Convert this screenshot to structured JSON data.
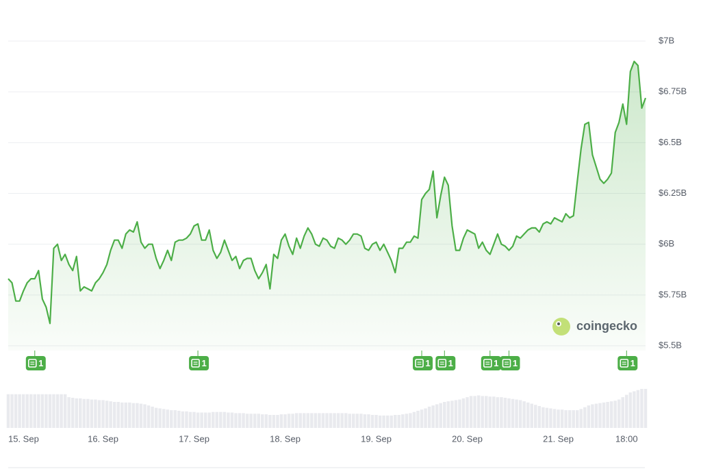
{
  "chart_data": {
    "type": "line",
    "x": [
      -1,
      0,
      1,
      2,
      3,
      4,
      5,
      6,
      7,
      8,
      9,
      10,
      11,
      12,
      13,
      14,
      15,
      16,
      17,
      18,
      19,
      20,
      21,
      22,
      23,
      24,
      25,
      26,
      27,
      28,
      29,
      30,
      31,
      32,
      33,
      34,
      35,
      36,
      37,
      38,
      39,
      40,
      41,
      42,
      43,
      44,
      45,
      46,
      47,
      48,
      49,
      50,
      51,
      52,
      53,
      54,
      55,
      56,
      57,
      58,
      59,
      60,
      61,
      62,
      63,
      64,
      65,
      66,
      67,
      68,
      69,
      70,
      71,
      72,
      73,
      74,
      75,
      76,
      77,
      78,
      79,
      80,
      81,
      82,
      83,
      84,
      85,
      86,
      87,
      88,
      89,
      90,
      91,
      92,
      93,
      94,
      95,
      96,
      97,
      98,
      99,
      100,
      101,
      102,
      103,
      104,
      105,
      106,
      107,
      108,
      109,
      110,
      111,
      112,
      113,
      114,
      115,
      116,
      117,
      118,
      119,
      120,
      121,
      122,
      123,
      124,
      125,
      126,
      127,
      128,
      129,
      130,
      131,
      132,
      133,
      134,
      135,
      136,
      137,
      138,
      139,
      140,
      141,
      142,
      143,
      144,
      145,
      146,
      147,
      148,
      149,
      150,
      151,
      152,
      153,
      154,
      155,
      156,
      157,
      158,
      159,
      160,
      161,
      162,
      163,
      164,
      165,
      166,
      167
    ],
    "series": [
      {
        "color": "#4cae47",
        "values": [
          5.83,
          5.81,
          5.72,
          5.72,
          5.77,
          5.81,
          5.83,
          5.83,
          5.87,
          5.73,
          5.69,
          5.61,
          5.98,
          6.0,
          5.92,
          5.95,
          5.9,
          5.87,
          5.94,
          5.77,
          5.79,
          5.78,
          5.77,
          5.81,
          5.83,
          5.86,
          5.9,
          5.97,
          6.02,
          6.02,
          5.98,
          6.05,
          6.07,
          6.06,
          6.11,
          6.01,
          5.98,
          6.0,
          6.0,
          5.93,
          5.88,
          5.92,
          5.97,
          5.92,
          6.01,
          6.02,
          6.02,
          6.03,
          6.05,
          6.09,
          6.1,
          6.02,
          6.02,
          6.07,
          5.97,
          5.93,
          5.96,
          6.02,
          5.97,
          5.92,
          5.94,
          5.88,
          5.92,
          5.93,
          5.93,
          5.87,
          5.83,
          5.86,
          5.9,
          5.78,
          5.95,
          5.93,
          6.02,
          6.05,
          5.99,
          5.95,
          6.03,
          5.98,
          6.04,
          6.08,
          6.05,
          6.0,
          5.99,
          6.03,
          6.02,
          5.99,
          5.98,
          6.03,
          6.02,
          6.0,
          6.02,
          6.05,
          6.05,
          6.04,
          5.98,
          5.97,
          6.0,
          6.01,
          5.97,
          6.0,
          5.96,
          5.92,
          5.86,
          5.98,
          5.98,
          6.01,
          6.01,
          6.04,
          6.03,
          6.22,
          6.25,
          6.27,
          6.36,
          6.13,
          6.24,
          6.33,
          6.29,
          6.09,
          5.97,
          5.97,
          6.03,
          6.07,
          6.06,
          6.05,
          5.98,
          6.01,
          5.97,
          5.95,
          6.0,
          6.05,
          6.0,
          5.99,
          5.97,
          5.99,
          6.04,
          6.03,
          6.05,
          6.07,
          6.08,
          6.08,
          6.06,
          6.1,
          6.11,
          6.1,
          6.13,
          6.12,
          6.11,
          6.15,
          6.13,
          6.14,
          6.31,
          6.47,
          6.59,
          6.6,
          6.44,
          6.38,
          6.32,
          6.3,
          6.32,
          6.35,
          6.55,
          6.6,
          6.69,
          6.59,
          6.85,
          6.9,
          6.88,
          6.67,
          6.72
        ]
      }
    ],
    "volume": {
      "color": "#e9eaee",
      "values": [
        57,
        57,
        57,
        57,
        57,
        57,
        57,
        57,
        57,
        57,
        57,
        57,
        57,
        57,
        57,
        57,
        52,
        51,
        50,
        50,
        49,
        49,
        48,
        48,
        47,
        47,
        46,
        45,
        44,
        44,
        43,
        43,
        43,
        42,
        42,
        41,
        40,
        38,
        36,
        34,
        33,
        32,
        31,
        30,
        30,
        29,
        28,
        28,
        27,
        27,
        26,
        26,
        26,
        26,
        27,
        27,
        27,
        27,
        26,
        26,
        25,
        25,
        25,
        24,
        24,
        24,
        24,
        23,
        23,
        22,
        22,
        22,
        23,
        23,
        24,
        24,
        25,
        25,
        25,
        25,
        25,
        25,
        25,
        25,
        25,
        25,
        25,
        25,
        25,
        25,
        24,
        24,
        24,
        24,
        23,
        23,
        22,
        22,
        21,
        21,
        21,
        21,
        22,
        22,
        23,
        24,
        25,
        27,
        29,
        31,
        33,
        36,
        38,
        40,
        42,
        44,
        45,
        46,
        47,
        48,
        50,
        52,
        54,
        54,
        55,
        54,
        54,
        53,
        53,
        52,
        52,
        51,
        50,
        49,
        48,
        47,
        45,
        43,
        41,
        39,
        37,
        35,
        34,
        33,
        32,
        31,
        31,
        30,
        30,
        30,
        30,
        32,
        35,
        38,
        40,
        41,
        42,
        43,
        44,
        45,
        46,
        48,
        52,
        56,
        60,
        62,
        64,
        66,
        66
      ]
    },
    "xlim": [
      -1,
      167
    ],
    "xticks": [
      {
        "value": 0,
        "label": "15. Sep"
      },
      {
        "value": 24,
        "label": "16. Sep"
      },
      {
        "value": 48,
        "label": "17. Sep"
      },
      {
        "value": 72,
        "label": "18. Sep"
      },
      {
        "value": 96,
        "label": "19. Sep"
      },
      {
        "value": 120,
        "label": "20. Sep"
      },
      {
        "value": 144,
        "label": "21. Sep"
      },
      {
        "value": 162,
        "label": "18:00"
      }
    ],
    "ylim": [
      5.5,
      7
    ],
    "yticks": [
      {
        "value": 5.5,
        "label": "$5.5B"
      },
      {
        "value": 5.75,
        "label": "$5.75B"
      },
      {
        "value": 6,
        "label": "$6B"
      },
      {
        "value": 6.25,
        "label": "$6.25B"
      },
      {
        "value": 6.5,
        "label": "$6.5B"
      },
      {
        "value": 6.75,
        "label": "$6.75B"
      },
      {
        "value": 7,
        "label": "$7B"
      }
    ],
    "grid": true,
    "news": [
      {
        "x": 6,
        "count": 1
      },
      {
        "x": 49,
        "count": 1
      },
      {
        "x": 108,
        "count": 1
      },
      {
        "x": 114,
        "count": 1
      },
      {
        "x": 126,
        "count": 1
      },
      {
        "x": 131,
        "count": 1
      },
      {
        "x": 162,
        "count": 1
      }
    ],
    "watermark": "coingecko"
  }
}
